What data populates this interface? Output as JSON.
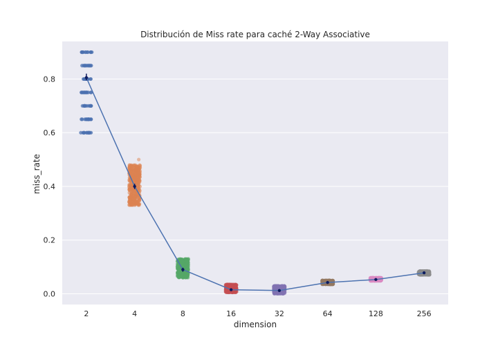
{
  "chart_data": {
    "type": "scatter",
    "title": "Distribución de Miss rate para caché 2-Way Associative",
    "xlabel": "dimension",
    "ylabel": "miss_rate",
    "categories": [
      "2",
      "4",
      "8",
      "16",
      "32",
      "64",
      "128",
      "256"
    ],
    "y_ticks": [
      "0.0",
      "0.2",
      "0.4",
      "0.6",
      "0.8"
    ],
    "ylim": [
      -0.04,
      0.94
    ],
    "grid": true,
    "background": "#eaeaf2",
    "colors": [
      "#4c72b0",
      "#dd8452",
      "#55a868",
      "#c44e52",
      "#8172b3",
      "#937860",
      "#da8bc3",
      "#8c8c8c"
    ],
    "line_color": "#4c72b0",
    "mean_marker_color": "#0d1b5e",
    "strip_distributions": [
      {
        "category": "2",
        "levels": [
          0.6,
          0.65,
          0.7,
          0.75,
          0.8,
          0.85,
          0.9
        ]
      },
      {
        "category": "4",
        "range": [
          0.33,
          0.48
        ],
        "outliers": [
          0.5
        ]
      },
      {
        "category": "8",
        "range": [
          0.06,
          0.13
        ]
      },
      {
        "category": "16",
        "range": [
          0.005,
          0.035
        ]
      },
      {
        "category": "32",
        "range": [
          0.0,
          0.03
        ]
      },
      {
        "category": "64",
        "range": [
          0.035,
          0.05
        ]
      },
      {
        "category": "128",
        "range": [
          0.048,
          0.06
        ]
      },
      {
        "category": "256",
        "range": [
          0.07,
          0.085
        ]
      }
    ],
    "series": [
      {
        "values": [
          0.805,
          0.4,
          0.09,
          0.015,
          0.012,
          0.042,
          0.053,
          0.078
        ]
      }
    ],
    "error_bars": [
      [
        0.795,
        0.82
      ],
      [
        0.39,
        0.41
      ],
      [
        0.082,
        0.097
      ],
      [
        0.012,
        0.02
      ],
      [
        0.008,
        0.017
      ],
      [
        0.039,
        0.046
      ],
      [
        0.05,
        0.056
      ],
      [
        0.074,
        0.083
      ]
    ]
  }
}
